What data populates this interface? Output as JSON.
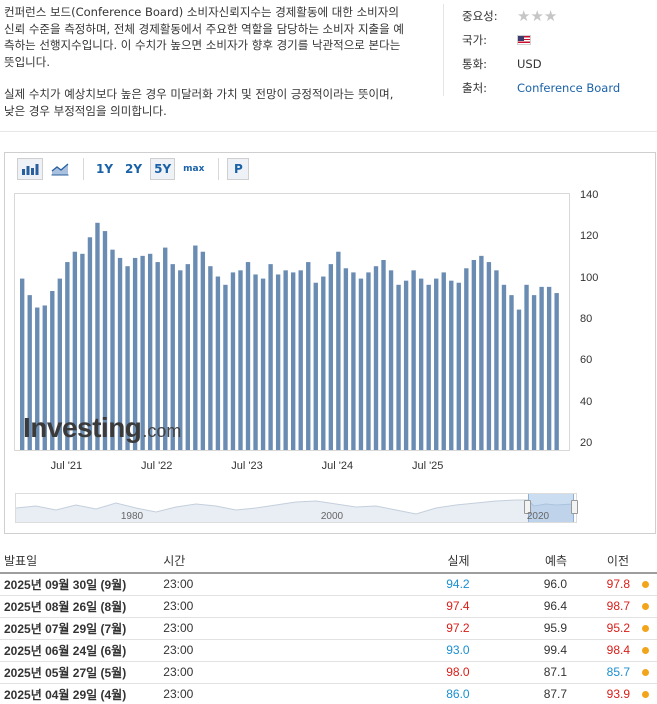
{
  "description": {
    "para1": "컨퍼런스 보드(Conference Board) 소비자신뢰지수는 경제활동에 대한 소비자의 신뢰 수준을 측정하며, 전체 경제활동에서 주요한 역할을 담당하는 소비자 지출을 예측하는 선행지수입니다. 이 수치가 높으면 소비자가 향후 경기를 낙관적으로 본다는 뜻입니다.",
    "para2": "실제 수치가 예상치보다 높은 경우 미달러화 가치 및 전망이 긍정적이라는 뜻이며, 낮은 경우 부정적임을 의미합니다."
  },
  "meta": {
    "importance_label": "중요성:",
    "importance_stars": "★★★",
    "country_label": "국가:",
    "country_icon": "us-flag-icon",
    "currency_label": "통화:",
    "currency_value": "USD",
    "source_label": "출처:",
    "source_value": "Conference Board"
  },
  "toolbar": {
    "bar_icon": "bar-chart-icon",
    "area_icon": "area-chart-icon",
    "range_1y": "1Y",
    "range_2y": "2Y",
    "range_5y": "5Y",
    "range_max": "max",
    "p_label": "P",
    "selected_range": "5Y"
  },
  "chart_data": {
    "type": "bar",
    "color": "#6a8cb2",
    "ylim": [
      20,
      140
    ],
    "yticks": [
      "140",
      "120",
      "100",
      "80",
      "60",
      "40",
      "20"
    ],
    "xticks": [
      "Jul '21",
      "Jul '22",
      "Jul '23",
      "Jul '24",
      "Jul '25"
    ],
    "values": [
      101,
      93,
      87,
      88,
      95,
      101,
      109,
      114,
      113,
      121,
      128,
      124,
      115,
      111,
      107,
      111,
      112,
      113,
      109,
      116,
      108,
      105,
      108,
      117,
      114,
      107,
      102,
      98,
      104,
      105,
      109,
      103,
      101,
      108,
      103,
      105,
      104,
      105,
      109,
      99,
      102,
      108,
      114,
      106,
      104,
      101,
      104,
      107,
      110,
      105,
      98,
      100,
      105,
      101,
      98,
      101,
      104,
      100,
      99,
      106,
      110,
      112,
      109,
      105,
      98,
      93,
      86,
      98,
      93,
      97,
      97,
      94
    ],
    "navigator_labels": [
      "1980",
      "2000",
      "2020"
    ],
    "watermark": "Investing",
    "watermark_domain": ".com"
  },
  "table": {
    "headers": [
      "발표일",
      "시간",
      "실제",
      "예측",
      "이전"
    ],
    "rows": [
      {
        "date": "2025년 09월 30일 (9월)",
        "time": "23:00",
        "actual": "94.2",
        "actual_color": "green",
        "forecast": "96.0",
        "previous": "97.8",
        "previous_color": "red"
      },
      {
        "date": "2025년 08월 26일 (8월)",
        "time": "23:00",
        "actual": "97.4",
        "actual_color": "red",
        "forecast": "96.4",
        "previous": "98.7",
        "previous_color": "red"
      },
      {
        "date": "2025년 07월 29일 (7월)",
        "time": "23:00",
        "actual": "97.2",
        "actual_color": "red",
        "forecast": "95.9",
        "previous": "95.2",
        "previous_color": "red"
      },
      {
        "date": "2025년 06월 24일 (6월)",
        "time": "23:00",
        "actual": "93.0",
        "actual_color": "green",
        "forecast": "99.4",
        "previous": "98.4",
        "previous_color": "red"
      },
      {
        "date": "2025년 05월 27일 (5월)",
        "time": "23:00",
        "actual": "98.0",
        "actual_color": "red",
        "forecast": "87.1",
        "previous": "85.7",
        "previous_color": "green"
      },
      {
        "date": "2025년 04월 29일 (4월)",
        "time": "23:00",
        "actual": "86.0",
        "actual_color": "green",
        "forecast": "87.7",
        "previous": "93.9",
        "previous_color": "red"
      }
    ]
  }
}
